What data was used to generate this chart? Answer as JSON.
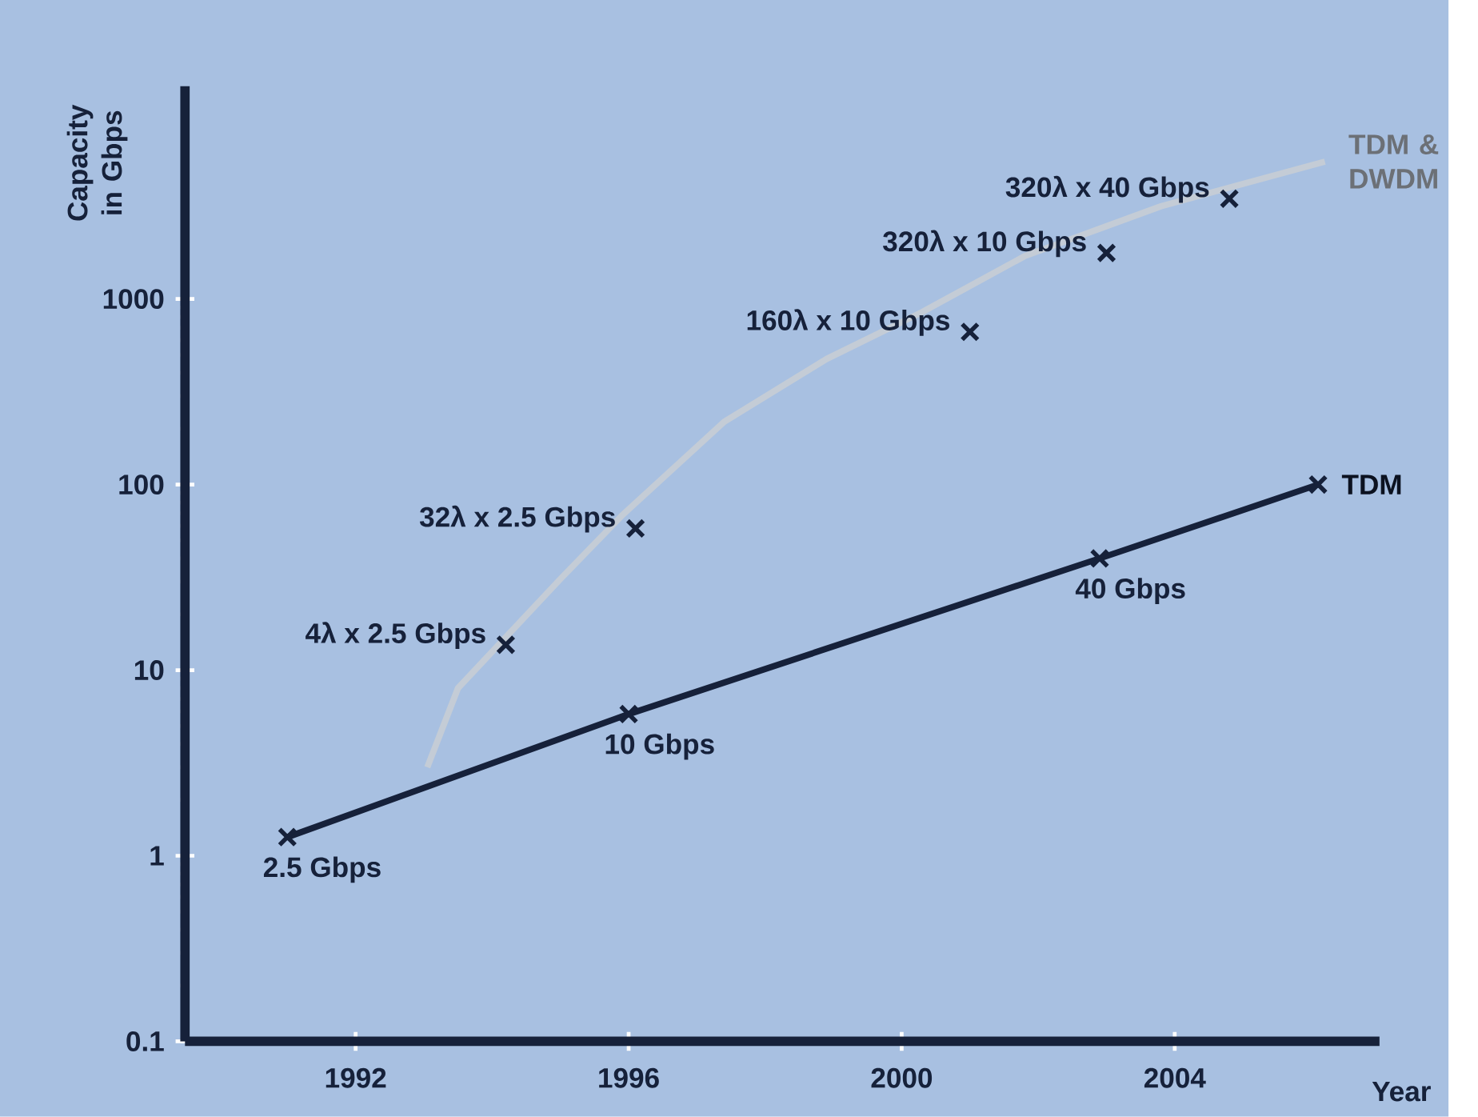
{
  "chart_data": {
    "type": "line",
    "ylabel": "Capacity in Gbps",
    "xlabel": "Year",
    "log": "y",
    "xlim": [
      1989.5,
      2007
    ],
    "ylim": [
      0.1,
      14000
    ],
    "xticks": [
      1992,
      1996,
      2000,
      2004
    ],
    "yticks": [
      0.1,
      1,
      10,
      100,
      1000
    ],
    "legend": false,
    "series": [
      {
        "name": "TDM",
        "color": "#16213a",
        "x": [
          1991,
          1996,
          2002.9,
          2006.1
        ],
        "values": [
          1.26,
          5.8,
          40,
          100
        ],
        "marker": "cross"
      },
      {
        "name": "TDM & DWDM",
        "color": "#c4ccd6",
        "x": [
          1993.05,
          1993.5,
          1995,
          1995.9,
          1997.4,
          1998.9,
          2000.3,
          2001.8,
          2003.8,
          2006.2
        ],
        "values": [
          3,
          8,
          31,
          68,
          218,
          475,
          850,
          1700,
          3160,
          5500
        ],
        "marker": "none"
      },
      {
        "type": "scatter",
        "color": "#16213a",
        "x": [
          1994.2,
          1996.1,
          2001,
          2003,
          2004.8
        ],
        "values": [
          13.7,
          58,
          665,
          1770,
          3470
        ],
        "marker": "cross"
      }
    ],
    "annotations": [
      {
        "text": "2.5 Gbps",
        "x": 1991,
        "y": 1.26
      },
      {
        "text": "10 Gbps",
        "x": 1996,
        "y": 5.8
      },
      {
        "text": "40 Gbps",
        "x": 2002.9,
        "y": 40
      },
      {
        "text": "4λ x 2.5 Gbps",
        "x": 1994.2,
        "y": 13.7
      },
      {
        "text": "32λ x 2.5 Gbps",
        "x": 1996.1,
        "y": 58
      },
      {
        "text": "160λ x 10 Gbps",
        "x": 2001,
        "y": 665
      },
      {
        "text": "320λ x 10 Gbps",
        "x": 2003,
        "y": 1770
      },
      {
        "text": "320λ x 40 Gbps",
        "x": 2004.8,
        "y": 3470
      }
    ]
  }
}
